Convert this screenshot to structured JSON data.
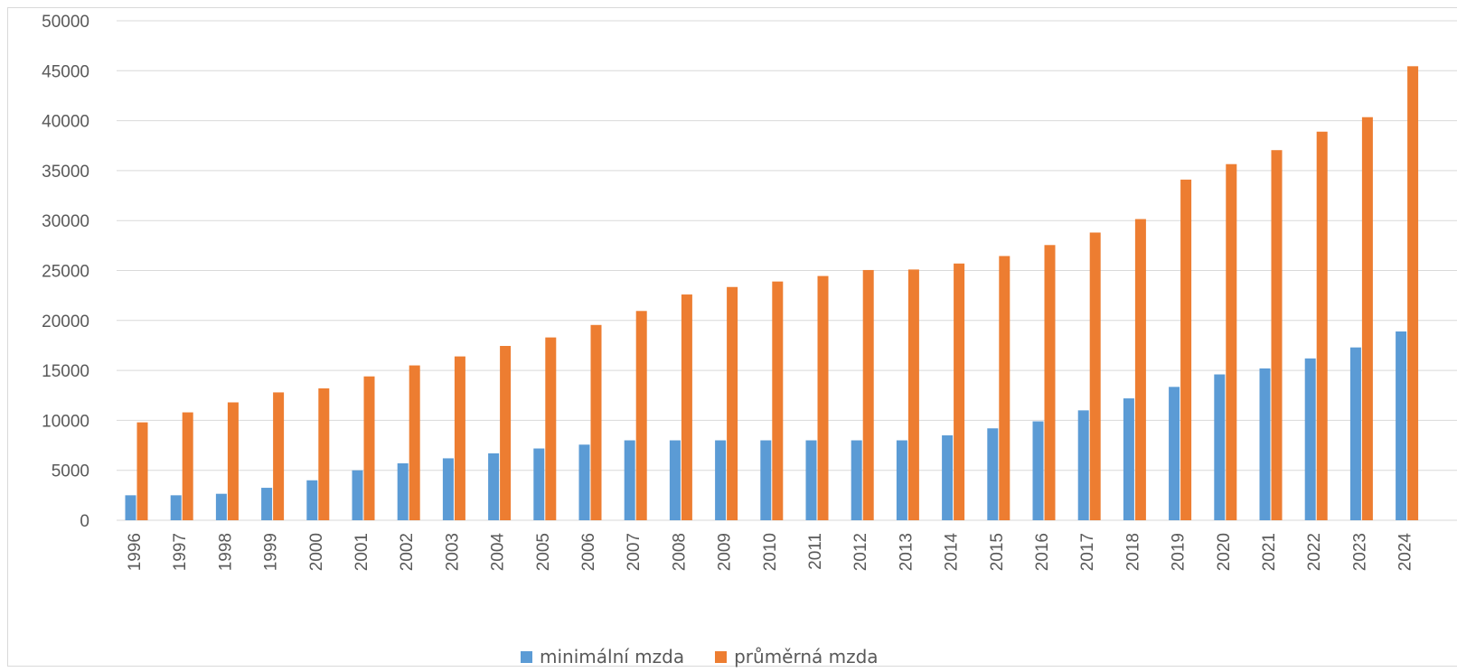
{
  "colors": {
    "series_min": "#5b9bd5",
    "series_avg": "#ed7d31",
    "grid": "#d9d9d9",
    "text": "#595959"
  },
  "chart_data": {
    "type": "bar",
    "title": "",
    "xlabel": "",
    "ylabel": "",
    "ylim": [
      0,
      50000
    ],
    "yticks": [
      "0",
      "5000",
      "10000",
      "15000",
      "20000",
      "25000",
      "30000",
      "35000",
      "40000",
      "45000",
      "50000"
    ],
    "grid": true,
    "legend_position": "bottom",
    "categories": [
      "1996",
      "1997",
      "1998",
      "1999",
      "2000",
      "2001",
      "2002",
      "2003",
      "2004",
      "2005",
      "2006",
      "2007",
      "2008",
      "2009",
      "2010",
      "2011",
      "2012",
      "2013",
      "2014",
      "2015",
      "2016",
      "2017",
      "2018",
      "2019",
      "2020",
      "2021",
      "2022",
      "2023",
      "2024"
    ],
    "series": [
      {
        "name": "minimální mzda",
        "values": [
          2500,
          2500,
          2650,
          3250,
          4000,
          5000,
          5700,
          6200,
          6700,
          7185,
          7570,
          8000,
          8000,
          8000,
          8000,
          8000,
          8000,
          8000,
          8500,
          9200,
          9900,
          11000,
          12200,
          13350,
          14600,
          15200,
          16200,
          17300,
          18900
        ]
      },
      {
        "name": "průměrná mzda",
        "values": [
          9800,
          10800,
          11800,
          12800,
          13200,
          14400,
          15500,
          16400,
          17450,
          18300,
          19550,
          20950,
          22600,
          23350,
          23900,
          24450,
          25050,
          25100,
          25700,
          26450,
          27550,
          28800,
          30150,
          34100,
          35650,
          37050,
          38900,
          40350,
          45450
        ]
      }
    ]
  }
}
